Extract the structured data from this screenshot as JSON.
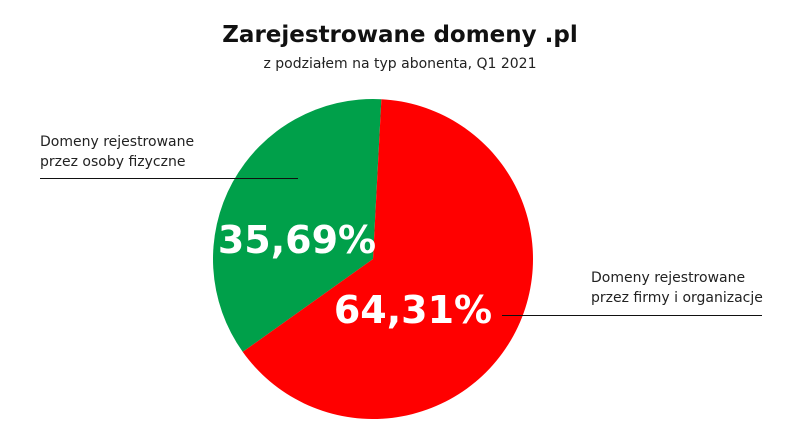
{
  "chart_data": {
    "type": "pie",
    "title": "Zarejestrowane domeny .pl",
    "subtitle": "z podziałem na typ abonenta, Q1 2021",
    "slices": [
      {
        "label_lines": [
          "Domeny rejestrowane",
          "przez osoby fizyczne"
        ],
        "value": 35.69,
        "value_label": "35,69%",
        "color": "#00a04a"
      },
      {
        "label_lines": [
          "Domeny rejestrowane",
          "przez firmy i organizacje"
        ],
        "value": 64.31,
        "value_label": "64,31%",
        "color": "#ff0000"
      }
    ]
  }
}
